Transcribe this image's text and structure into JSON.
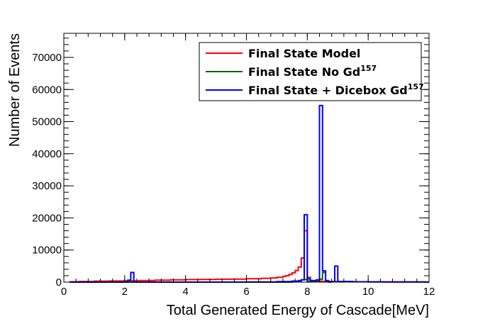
{
  "chart_data": {
    "type": "line",
    "xlabel": "Total Generated Energy of Cascade[MeV]",
    "ylabel": "Number of Events",
    "xlim": [
      0,
      12
    ],
    "ylim": [
      0,
      77500
    ],
    "x_ticks": [
      0,
      2,
      4,
      6,
      8,
      10,
      12
    ],
    "y_ticks": [
      0,
      10000,
      20000,
      30000,
      40000,
      50000,
      60000,
      70000
    ],
    "x_tick_labels": [
      "0",
      "2",
      "4",
      "6",
      "8",
      "10",
      "12"
    ],
    "y_tick_labels": [
      "0",
      "10000",
      "20000",
      "30000",
      "40000",
      "50000",
      "60000",
      "70000"
    ],
    "legend_position": "top-right",
    "bin_width": 0.1,
    "series": [
      {
        "name": "Final State Model",
        "superscript": "",
        "color": "#ff0000",
        "bins": [
          [
            0.2,
            100
          ],
          [
            0.5,
            200
          ],
          [
            1.0,
            300
          ],
          [
            1.5,
            350
          ],
          [
            2.0,
            400
          ],
          [
            2.5,
            500
          ],
          [
            3.0,
            600
          ],
          [
            3.5,
            700
          ],
          [
            4.0,
            800
          ],
          [
            4.5,
            850
          ],
          [
            5.0,
            900
          ],
          [
            5.5,
            950
          ],
          [
            6.0,
            1050
          ],
          [
            6.5,
            1200
          ],
          [
            6.8,
            1300
          ],
          [
            7.0,
            1500
          ],
          [
            7.2,
            1800
          ],
          [
            7.3,
            2000
          ],
          [
            7.4,
            2400
          ],
          [
            7.5,
            2900
          ],
          [
            7.6,
            3600
          ],
          [
            7.7,
            4700
          ],
          [
            7.8,
            7500
          ],
          [
            7.9,
            16000
          ],
          [
            8.0,
            1500
          ],
          [
            8.1,
            300
          ],
          [
            8.5,
            200
          ],
          [
            9.0,
            150
          ],
          [
            9.5,
            100
          ],
          [
            10.5,
            50
          ],
          [
            11.9,
            0
          ]
        ]
      },
      {
        "name": "Final State No Gd",
        "superscript": "157",
        "color": "#006400",
        "bins": [
          [
            0.2,
            0
          ],
          [
            2.0,
            0
          ],
          [
            7.5,
            300
          ],
          [
            7.7,
            500
          ],
          [
            7.8,
            700
          ],
          [
            7.9,
            800
          ],
          [
            8.0,
            300
          ],
          [
            8.3,
            600
          ],
          [
            8.4,
            900
          ],
          [
            8.5,
            3000
          ],
          [
            8.6,
            500
          ],
          [
            8.7,
            0
          ]
        ]
      },
      {
        "name": "Final State + Dicebox Gd",
        "superscript": "157",
        "color": "#0000ff",
        "bins": [
          [
            0.2,
            0
          ],
          [
            2.0,
            100
          ],
          [
            2.1,
            600
          ],
          [
            2.2,
            3000
          ],
          [
            2.3,
            100
          ],
          [
            2.4,
            0
          ],
          [
            6.0,
            50
          ],
          [
            7.0,
            150
          ],
          [
            7.5,
            300
          ],
          [
            7.8,
            700
          ],
          [
            7.9,
            21000
          ],
          [
            8.0,
            1000
          ],
          [
            8.1,
            500
          ],
          [
            8.3,
            700
          ],
          [
            8.4,
            55000
          ],
          [
            8.5,
            3500
          ],
          [
            8.6,
            400
          ],
          [
            8.7,
            100
          ],
          [
            8.9,
            5000
          ],
          [
            9.0,
            200
          ],
          [
            9.5,
            100
          ],
          [
            10.0,
            50
          ],
          [
            11.9,
            0
          ]
        ]
      }
    ]
  }
}
